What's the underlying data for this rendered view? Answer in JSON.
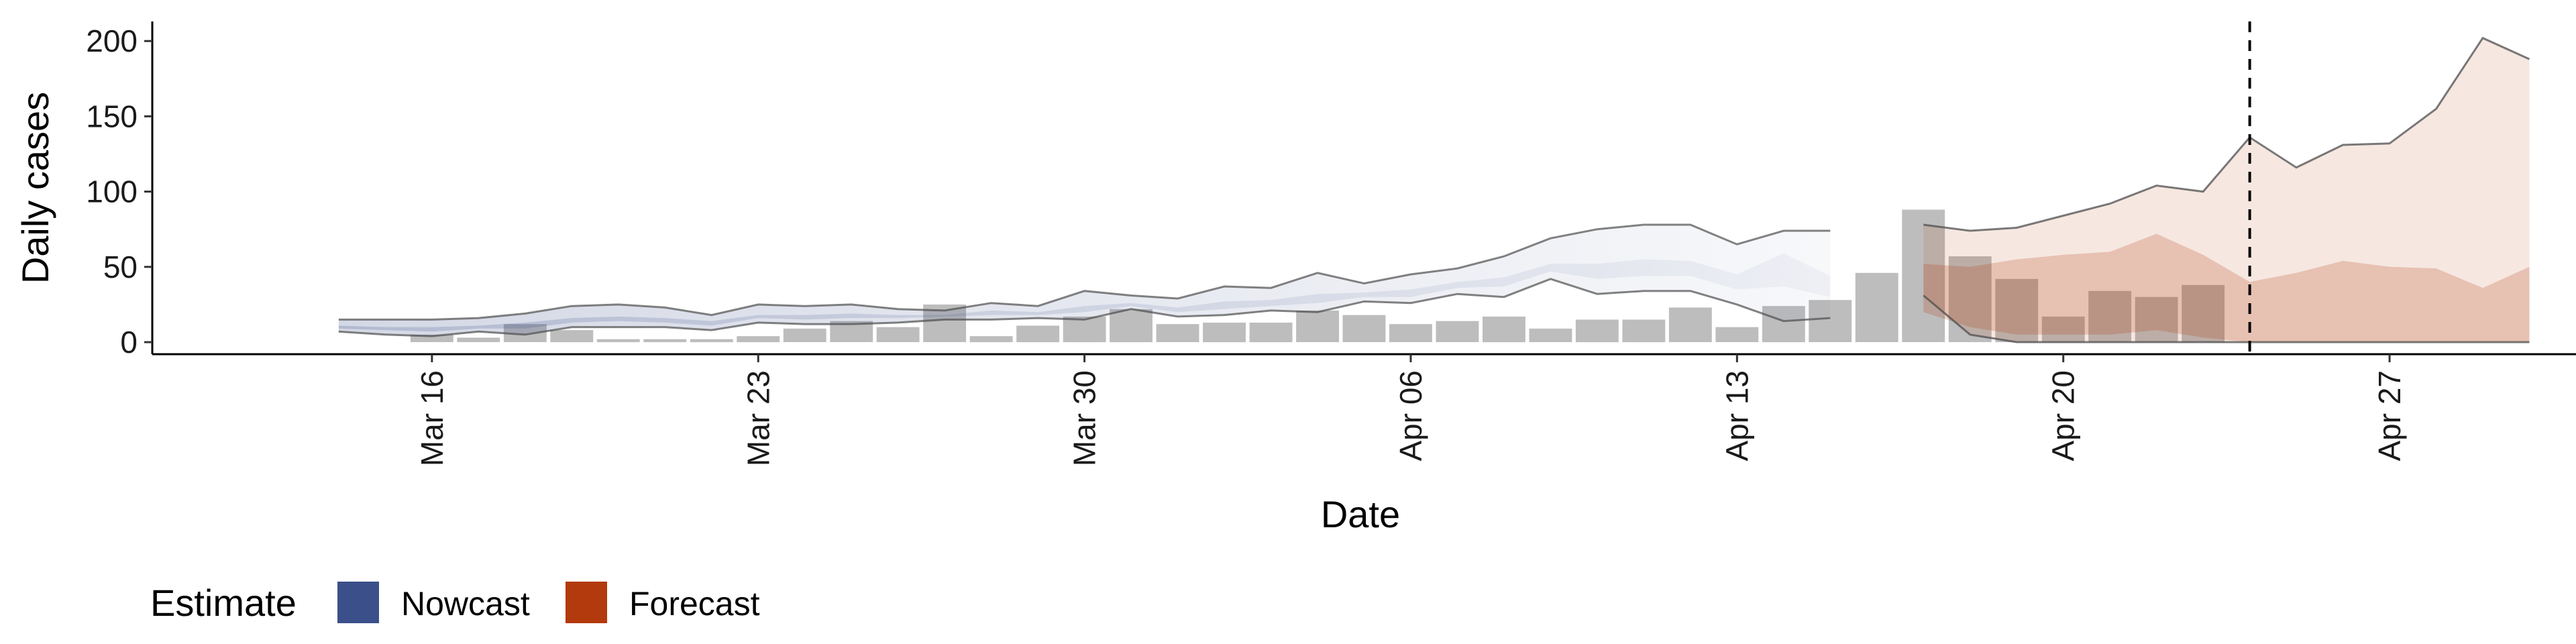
{
  "chart_data": {
    "type": "bar",
    "xlabel": "Date",
    "ylabel": "Daily cases",
    "x_ticks": [
      "Mar 16",
      "Mar 23",
      "Mar 30",
      "Apr 06",
      "Apr 13",
      "Apr 20",
      "Apr 27"
    ],
    "y_ticks": [
      0,
      50,
      100,
      150,
      200
    ],
    "ylim": [
      -8,
      213
    ],
    "xlim": [
      "2020-03-10",
      "2020-05-01"
    ],
    "grid": false,
    "start_date": "2020-03-14",
    "observed_cases": [
      0,
      0,
      5,
      3,
      12,
      8,
      2,
      2,
      2,
      4,
      9,
      14,
      10,
      25,
      4,
      11,
      17,
      22,
      12,
      13,
      13,
      21,
      18,
      12,
      14,
      17,
      9,
      15,
      15,
      23,
      10,
      24,
      28,
      46,
      88,
      57,
      42,
      17,
      34,
      30,
      38
    ],
    "nowcast_dates": [
      "2020-03-14",
      "2020-04-16"
    ],
    "nowcast_upper90": [
      15,
      15,
      15,
      16,
      19,
      24,
      25,
      23,
      18,
      25,
      24,
      25,
      22,
      21,
      26,
      24,
      34,
      31,
      29,
      37,
      36,
      46,
      39,
      45,
      49,
      57,
      69,
      75,
      78,
      78,
      65,
      74,
      74
    ],
    "nowcast_lower90": [
      7,
      5,
      4,
      7,
      5,
      10,
      10,
      10,
      8,
      13,
      12,
      12,
      13,
      15,
      15,
      16,
      15,
      22,
      17,
      18,
      21,
      20,
      27,
      26,
      32,
      30,
      42,
      32,
      34,
      34,
      25,
      14,
      16
    ],
    "nowcast_upper50": [
      11,
      10,
      10,
      11,
      13,
      16,
      17,
      16,
      14,
      18,
      18,
      19,
      18,
      18,
      21,
      20,
      24,
      26,
      23,
      27,
      28,
      32,
      33,
      35,
      40,
      43,
      52,
      52,
      55,
      54,
      45,
      59,
      44
    ],
    "nowcast_lower50": [
      9,
      8,
      7,
      9,
      9,
      13,
      14,
      13,
      11,
      16,
      15,
      16,
      16,
      17,
      18,
      18,
      20,
      24,
      20,
      22,
      24,
      26,
      30,
      30,
      36,
      37,
      47,
      42,
      44,
      44,
      35,
      37,
      30
    ],
    "forecast_dates": [
      "2020-04-17",
      "2020-04-29"
    ],
    "forecast_upper90": [
      78,
      74,
      76,
      84,
      92,
      104,
      100,
      136,
      116,
      131,
      132,
      155,
      202,
      188
    ],
    "forecast_lower90": [
      31,
      5,
      0,
      0,
      0,
      0,
      0,
      0,
      0,
      0,
      0,
      0,
      0,
      0
    ],
    "forecast_upper50": [
      52,
      50,
      55,
      58,
      60,
      72,
      58,
      40,
      46,
      54,
      50,
      49,
      36,
      50
    ],
    "forecast_lower50": [
      20,
      10,
      5,
      5,
      5,
      8,
      3,
      0,
      0,
      0,
      0,
      0,
      0,
      0
    ],
    "forecast_vline": "2020-04-24",
    "legend": {
      "title": "Estimate",
      "items": [
        {
          "label": "Nowcast",
          "color": "#3b4f8a"
        },
        {
          "label": "Forecast",
          "color": "#b33a0c"
        }
      ],
      "placement": "bottom-left"
    },
    "colors": {
      "bars": "#bdbdbd",
      "nowcast": "#3b4f8a",
      "forecast": "#b33a0c",
      "interval_line": "#4d4d4d"
    }
  }
}
